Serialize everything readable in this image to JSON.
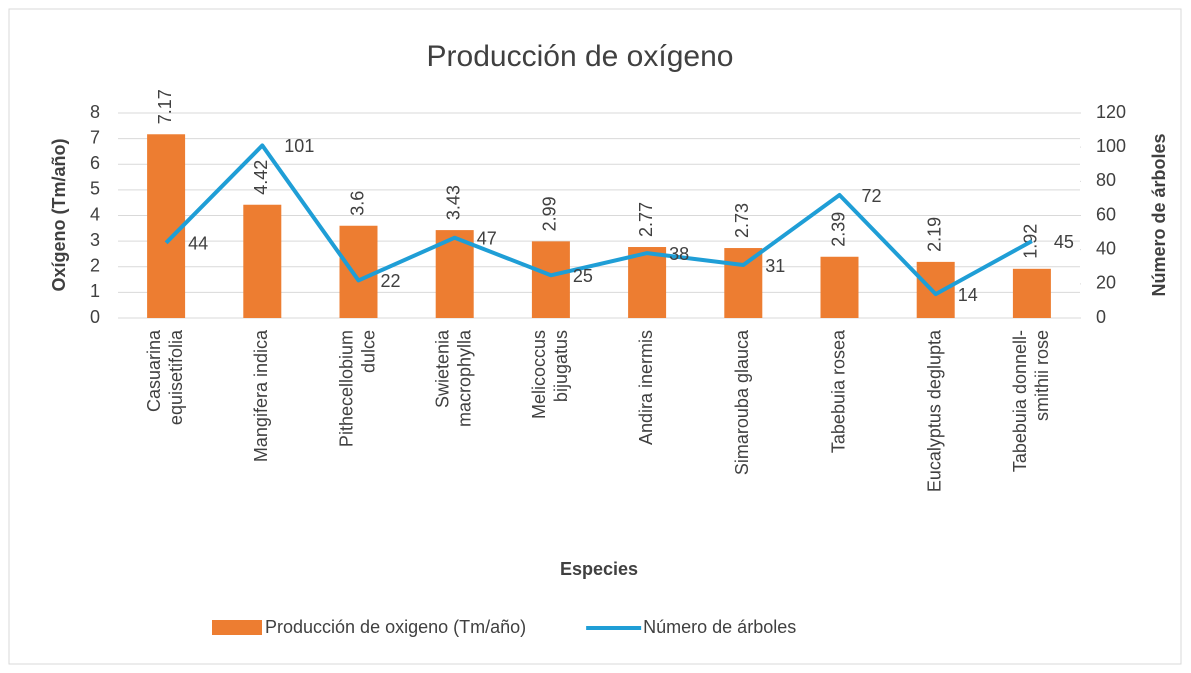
{
  "chart_data": {
    "type": "bar_line",
    "title": "Producción de oxígeno",
    "x_label": "Especies",
    "y_label": "Oxígeno (Tm/año)",
    "y2_label": "Número de árboles",
    "categories": [
      "Casuarina equisetifolia",
      "Mangifera indica",
      "Pithecellobium dulce",
      "Swietenia macrophylla",
      "Melicoccus bijugatus",
      "Andira inermis",
      "Simarouba glauca",
      "Tabebuia rosea",
      "Eucalyptus deglupta",
      "Tabebuia donnell-smithii rose"
    ],
    "series": [
      {
        "name": "Producción de oxigeno (Tm/año)",
        "type": "bar",
        "color": "#ed7d31",
        "values": [
          7.17,
          4.42,
          3.6,
          3.43,
          2.99,
          2.77,
          2.73,
          2.39,
          2.19,
          1.92
        ]
      },
      {
        "name": "Número de árboles",
        "type": "line",
        "axis": "y2",
        "color": "#1f9ed6",
        "values": [
          44,
          101,
          22,
          47,
          25,
          38,
          31,
          72,
          14,
          45
        ]
      }
    ],
    "ylim": [
      0,
      8
    ],
    "yticks": [
      0,
      1,
      2,
      3,
      4,
      5,
      6,
      7,
      8
    ],
    "y2lim": [
      0,
      120
    ],
    "y2ticks": [
      0,
      20,
      40,
      60,
      80,
      100,
      120
    ],
    "grid": true,
    "legend": "bottom"
  }
}
